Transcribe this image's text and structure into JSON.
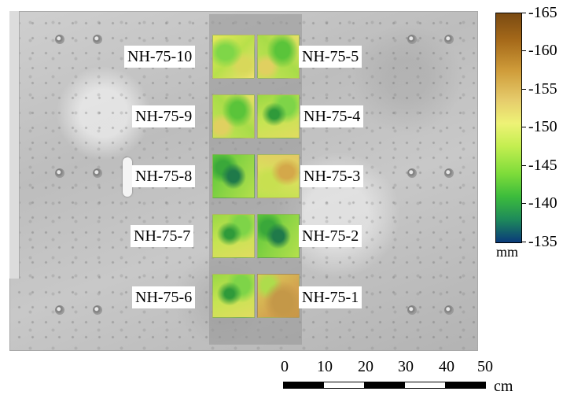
{
  "samples": {
    "left": [
      "NH-75-10",
      "NH-75-9",
      "NH-75-8",
      "NH-75-7",
      "NH-75-6"
    ],
    "right": [
      "NH-75-5",
      "NH-75-4",
      "NH-75-3",
      "NH-75-2",
      "NH-75-1"
    ]
  },
  "colorbar": {
    "unit": "mm",
    "ticks": [
      "-165",
      "-160",
      "-155",
      "-150",
      "-145",
      "-140",
      "-135"
    ],
    "range": [
      -165,
      -135
    ],
    "colors": [
      "#7a4a12",
      "#cf9c3a",
      "#eef276",
      "#7edc3a",
      "#1e8a5a",
      "#0a3a7a"
    ]
  },
  "scale_bar": {
    "unit": "cm",
    "ticks": [
      "0",
      "10",
      "20",
      "30",
      "40",
      "50"
    ]
  }
}
